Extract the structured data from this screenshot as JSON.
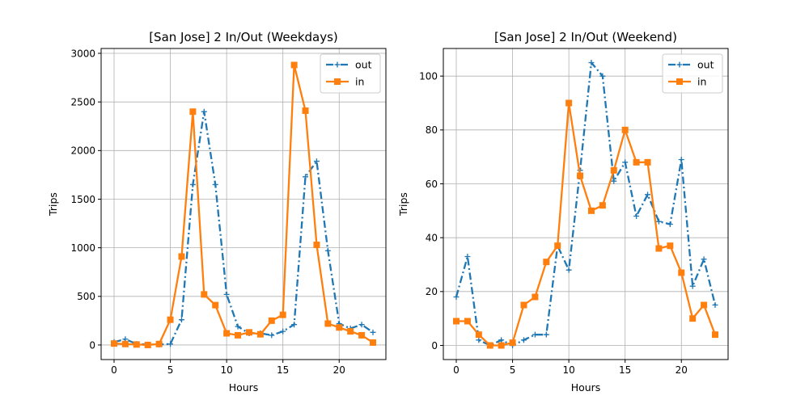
{
  "chart_data": [
    {
      "type": "line",
      "title": "[San Jose] 2 In/Out (Weekdays)",
      "xlabel": "Hours",
      "ylabel": "Trips",
      "xlim": [
        -1.15,
        24.15
      ],
      "ylim": [
        -150,
        3050
      ],
      "xticks": [
        0,
        5,
        10,
        15,
        20
      ],
      "yticks": [
        0,
        500,
        1000,
        1500,
        2000,
        2500,
        3000
      ],
      "grid": true,
      "legend": "top-right",
      "x": [
        0,
        1,
        2,
        3,
        4,
        5,
        6,
        7,
        8,
        9,
        10,
        11,
        12,
        13,
        14,
        15,
        16,
        17,
        18,
        19,
        20,
        21,
        22,
        23
      ],
      "series": [
        {
          "name": "out",
          "color": "#1f77b4",
          "style": "dash-dot",
          "marker": "plus",
          "values": [
            30,
            60,
            10,
            5,
            5,
            10,
            260,
            1650,
            2400,
            1650,
            520,
            190,
            120,
            120,
            100,
            140,
            210,
            1730,
            1890,
            970,
            220,
            170,
            210,
            130
          ]
        },
        {
          "name": "in",
          "color": "#ff7f0e",
          "style": "solid",
          "marker": "square",
          "values": [
            15,
            10,
            5,
            0,
            10,
            260,
            910,
            2400,
            520,
            410,
            120,
            100,
            130,
            110,
            250,
            310,
            2880,
            2410,
            1030,
            220,
            180,
            140,
            100,
            25
          ]
        }
      ]
    },
    {
      "type": "line",
      "title": "[San Jose] 2 In/Out (Weekend)",
      "xlabel": "Hours",
      "ylabel": "Trips",
      "xlim": [
        -1.15,
        24.15
      ],
      "ylim": [
        -5.25,
        110.25
      ],
      "xticks": [
        0,
        5,
        10,
        15,
        20
      ],
      "yticks": [
        0,
        20,
        40,
        60,
        80,
        100
      ],
      "grid": true,
      "legend": "top-right",
      "x": [
        0,
        1,
        2,
        3,
        4,
        5,
        6,
        7,
        8,
        9,
        10,
        11,
        12,
        13,
        14,
        15,
        16,
        17,
        18,
        19,
        20,
        21,
        22,
        23
      ],
      "series": [
        {
          "name": "out",
          "color": "#1f77b4",
          "style": "dash-dot",
          "marker": "plus",
          "values": [
            18,
            33,
            2,
            0,
            2,
            0,
            2,
            4,
            4,
            37,
            28,
            65,
            105,
            100,
            61,
            68,
            48,
            56,
            46,
            45,
            69,
            22,
            32,
            15
          ]
        },
        {
          "name": "in",
          "color": "#ff7f0e",
          "style": "solid",
          "marker": "square",
          "values": [
            9,
            9,
            4,
            0,
            0,
            1,
            15,
            18,
            31,
            37,
            90,
            63,
            50,
            52,
            65,
            80,
            68,
            68,
            36,
            37,
            27,
            10,
            15,
            4
          ]
        }
      ]
    }
  ]
}
